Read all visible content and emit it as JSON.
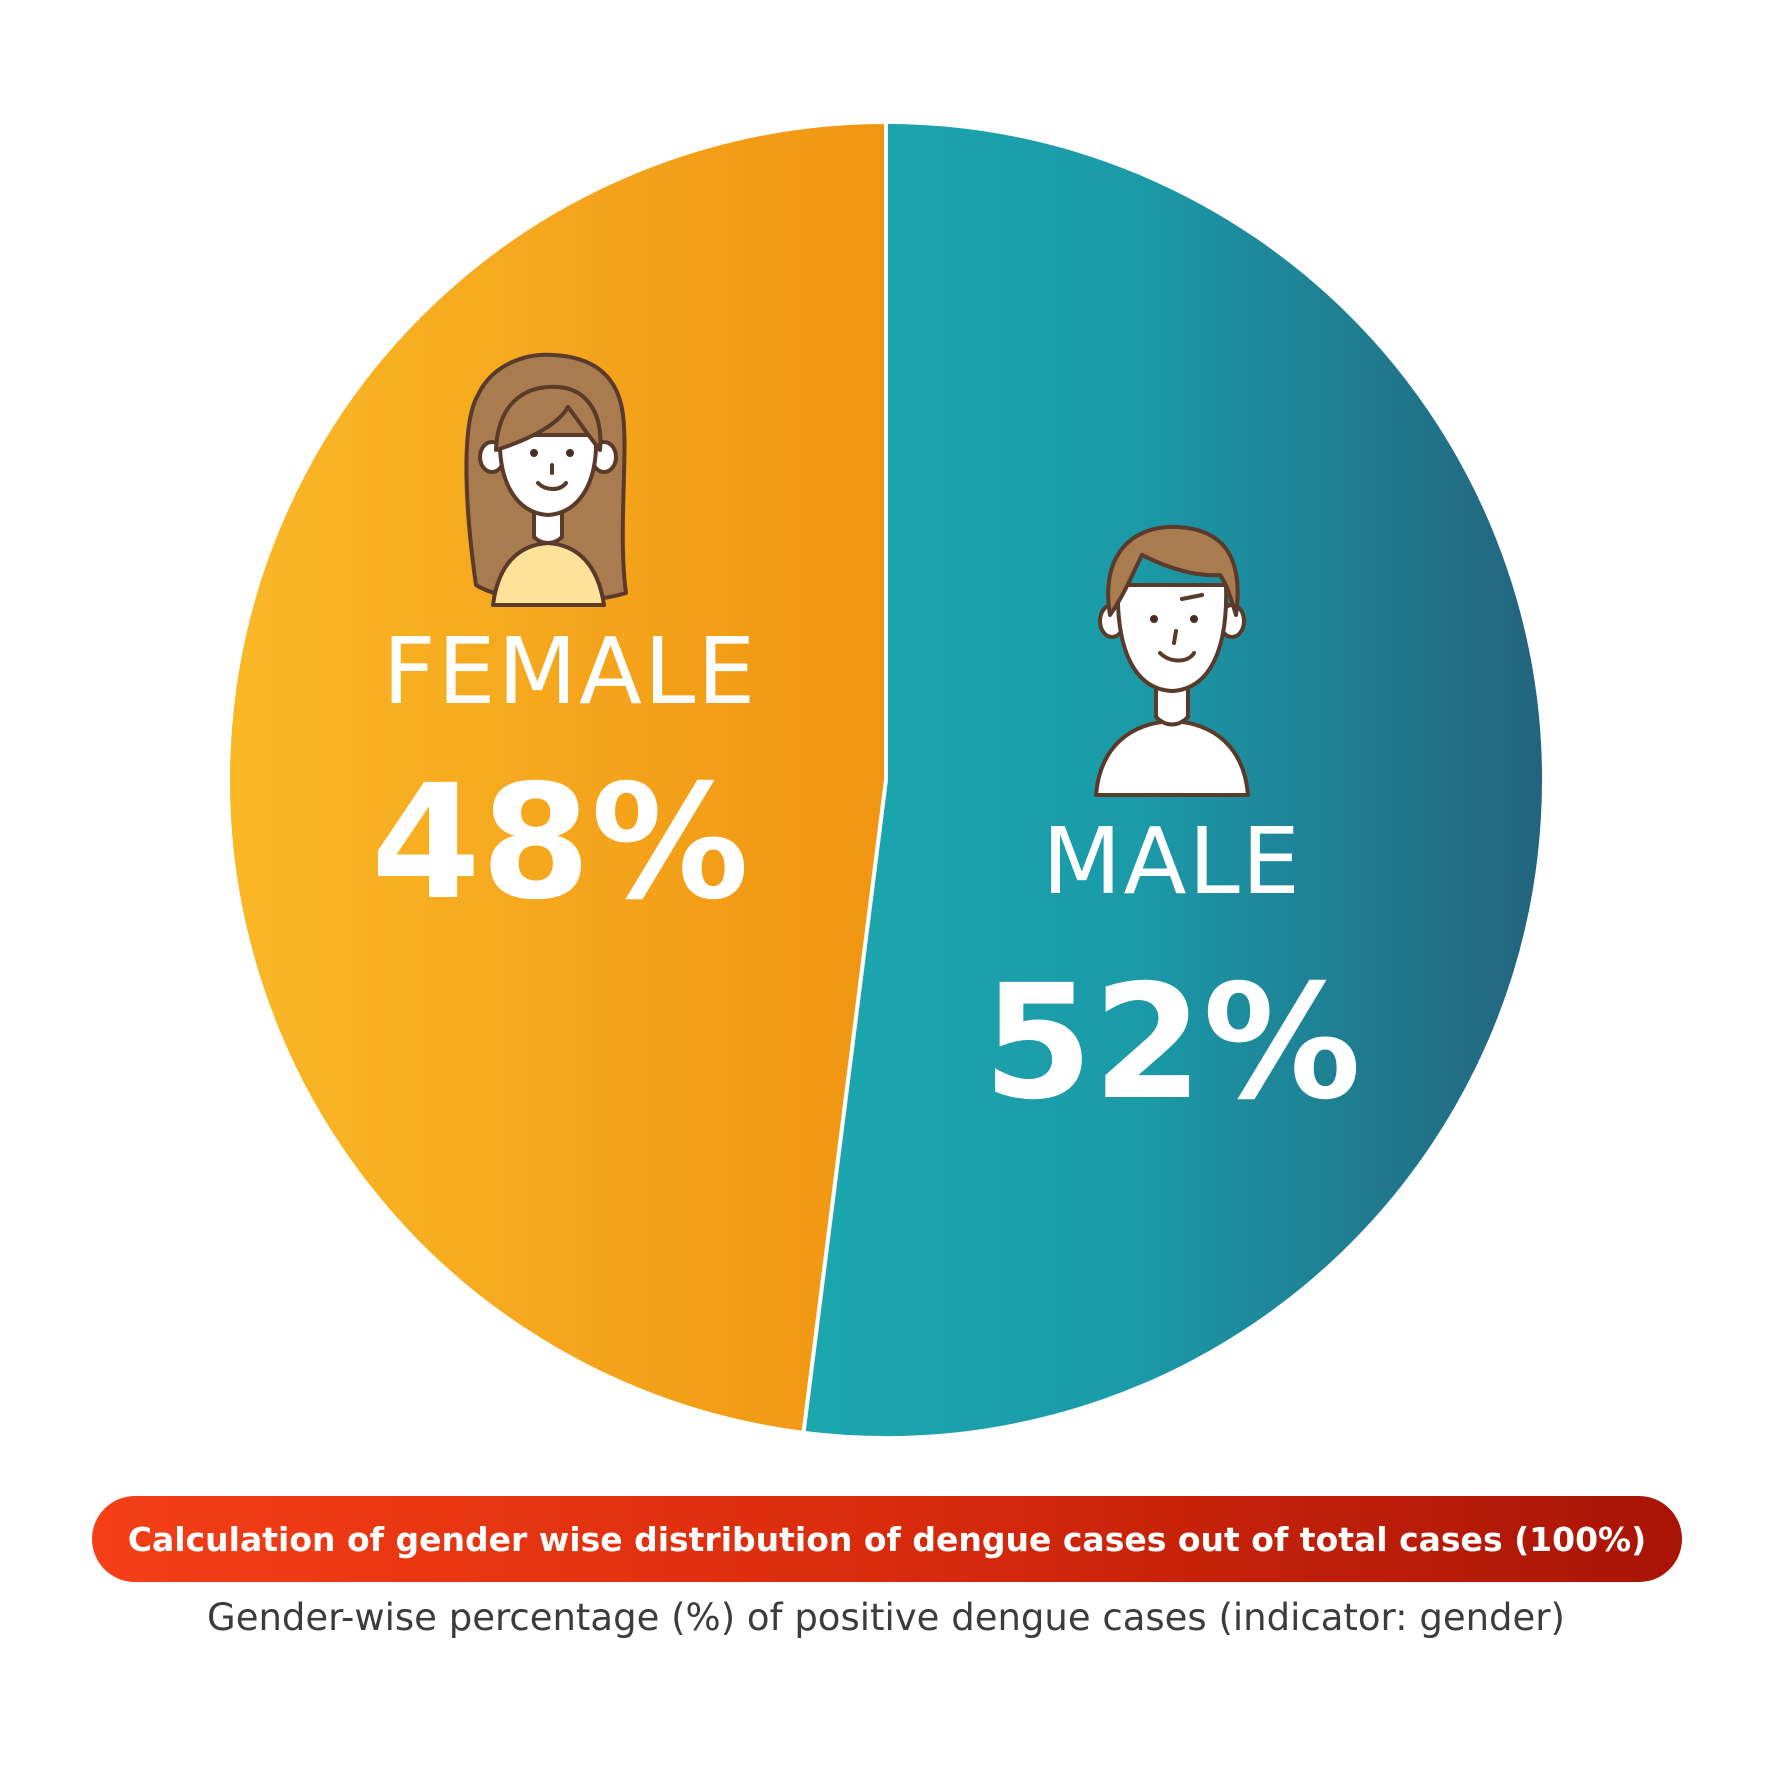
{
  "chart_data": {
    "type": "pie",
    "slices": [
      {
        "label": "FEMALE",
        "value": 48,
        "value_label": "48%",
        "color": "#f6a61c",
        "icon": "female-avatar-icon"
      },
      {
        "label": "MALE",
        "value": 52,
        "value_label": "52%",
        "color": "#1b9aa8",
        "icon": "male-avatar-icon"
      }
    ],
    "title": "Calculation of gender wise distribution of dengue cases out of total cases (100%)",
    "subtitle": "Gender-wise percentage (%) of positive dengue cases (indicator: gender)",
    "legend": "none"
  },
  "colors": {
    "female_light": "#fab827",
    "female_dark": "#f09512",
    "male_light": "#1ca7ae",
    "male_dark": "#23637d",
    "banner_start": "#f43f17",
    "banner_end": "#a81406"
  }
}
